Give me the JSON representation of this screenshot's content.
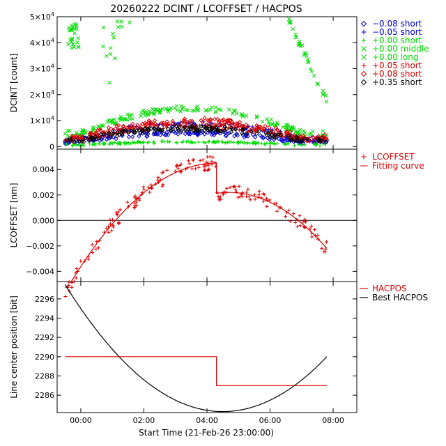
{
  "chart_data": [
    {
      "type": "scatter",
      "title": "20260222 DCINT / LCOFFSET / HACPOS",
      "xlabel": "",
      "ylabel": "DCINT [count]",
      "xlim": [
        -0.75,
        8.75
      ],
      "ylim": [
        -1000,
        50000
      ],
      "x_ticks": [
        0,
        2,
        4,
        6,
        8
      ],
      "y_ticks": [
        {
          "v": 0,
          "base": "0",
          "exp": ""
        },
        {
          "v": 10000,
          "base": "1×10",
          "exp": "4"
        },
        {
          "v": 20000,
          "base": "2×10",
          "exp": "4"
        },
        {
          "v": 30000,
          "base": "3×10",
          "exp": "4"
        },
        {
          "v": 40000,
          "base": "4×10",
          "exp": "4"
        },
        {
          "v": 50000,
          "base": "5×10",
          "exp": "4"
        }
      ],
      "legend_position": "right",
      "series": [
        {
          "name": "−0.08 short",
          "symbol": "◇",
          "color": "#0000cc",
          "level": 5200,
          "spread": 1600
        },
        {
          "name": "−0.05 short",
          "symbol": "+",
          "color": "#0000cc",
          "level": 8600,
          "spread": 2200
        },
        {
          "name": "+0.00 short",
          "symbol": "+",
          "color": "#00dd00",
          "level": 1800,
          "spread": 800
        },
        {
          "name": "+0.00 middle",
          "symbol": "×",
          "color": "#00dd00",
          "level": 14500,
          "spread": 2500
        },
        {
          "name": "+0.00 long",
          "symbol": "×",
          "color": "#00dd00",
          "level": 45000,
          "spread": 5000
        },
        {
          "name": "+0.05 short",
          "symbol": "+",
          "color": "#dd0000",
          "level": 8000,
          "spread": 2000
        },
        {
          "name": "+0.08 short",
          "symbol": "◇",
          "color": "#dd0000",
          "level": 9800,
          "spread": 2400
        },
        {
          "name": "+0.35 short",
          "symbol": "◇",
          "color": "#000000",
          "level": 7000,
          "spread": 2000
        }
      ]
    },
    {
      "type": "scatter",
      "title": "",
      "xlabel": "",
      "ylabel": "LCOFFSET [nm]",
      "xlim": [
        -0.75,
        8.75
      ],
      "ylim": [
        -0.0048,
        0.0056
      ],
      "y_ticks": [
        {
          "v": -0.004,
          "label": "−0.004"
        },
        {
          "v": -0.002,
          "label": "−0.002"
        },
        {
          "v": 0,
          "label": "0.000"
        },
        {
          "v": 0.002,
          "label": "0.002"
        },
        {
          "v": 0.004,
          "label": "0.004"
        }
      ],
      "zero_line": true,
      "legend_position": "right",
      "series": [
        {
          "name": "LCOFFSET",
          "symbol": "+",
          "color": "#dd0000",
          "x_range": [
            -0.5,
            7.8
          ],
          "break_x": 4.3
        },
        {
          "name": "Fitting curve",
          "symbol": "–",
          "color": "#dd0000",
          "segments": [
            {
              "x": [
                -0.3,
                4.3
              ],
              "y_start": -0.0048,
              "y_end": 0.0045,
              "peak": 0.0045,
              "peak_x": 4.3
            },
            {
              "x": [
                4.3,
                7.8
              ],
              "y_start": 0.0022,
              "y_end": -0.0022,
              "peak": 0.0022,
              "peak_x": 4.7
            }
          ]
        }
      ]
    },
    {
      "type": "line",
      "title": "",
      "xlabel": "Start Time (21-Feb-26 23:00:00)",
      "ylabel": "Line center position [bit]",
      "xlim": [
        -0.75,
        8.75
      ],
      "ylim": [
        2284.2,
        2297.8
      ],
      "x_ticks": [
        {
          "v": 0,
          "label": "00:00"
        },
        {
          "v": 2,
          "label": "02:00"
        },
        {
          "v": 4,
          "label": "04:00"
        },
        {
          "v": 6,
          "label": "06:00"
        },
        {
          "v": 8,
          "label": "08:00"
        }
      ],
      "y_ticks": [
        2286,
        2288,
        2290,
        2292,
        2294,
        2296
      ],
      "legend_position": "right",
      "series": [
        {
          "name": "HACPOS",
          "color": "#dd0000",
          "steps": [
            {
              "x": [
                -0.5,
                4.3
              ],
              "y": 2290
            },
            {
              "x": [
                4.3,
                7.8
              ],
              "y": 2287
            }
          ]
        },
        {
          "name": "Best HACPOS",
          "color": "#000000",
          "curve": {
            "x": [
              -0.5,
              7.8
            ],
            "vertex_x": 4.5,
            "vertex_y": 2284.3,
            "y_at_start": 2297.5,
            "y_at_end": 2290
          }
        }
      ]
    }
  ]
}
